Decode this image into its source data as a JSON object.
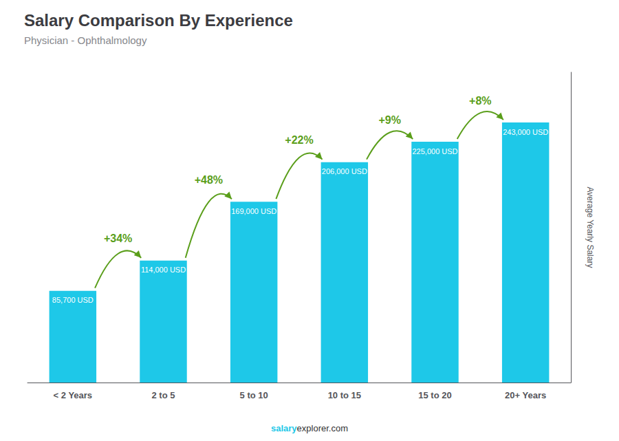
{
  "chart_data": {
    "type": "bar",
    "title": "Salary Comparison By Experience",
    "subtitle": "Physician - Ophthalmology",
    "ylabel": "Average Yearly Salary",
    "categories": [
      "< 2 Years",
      "2 to 5",
      "5 to 10",
      "10 to 15",
      "15 to 20",
      "20+ Years"
    ],
    "values": [
      85700,
      114000,
      169000,
      206000,
      225000,
      243000
    ],
    "value_labels": [
      "85,700 USD",
      "114,000 USD",
      "169,000 USD",
      "206,000 USD",
      "225,000 USD",
      "243,000 USD"
    ],
    "data_labels": true,
    "color": "#1EC8E8",
    "ylim": [
      0,
      290000
    ],
    "tick_labels": "x",
    "grid": false,
    "annotations": [
      {
        "text": "+34%",
        "from": "< 2 Years",
        "to": "2 to 5"
      },
      {
        "text": "+48%",
        "from": "2 to 5",
        "to": "5 to 10"
      },
      {
        "text": "+22%",
        "from": "5 to 10",
        "to": "10 to 15"
      },
      {
        "text": "+9%",
        "from": "10 to 15",
        "to": "15 to 20"
      },
      {
        "text": "+8%",
        "from": "15 to 20",
        "to": "20+ Years"
      }
    ],
    "watermark": [
      "salary",
      "explorer.com"
    ]
  }
}
